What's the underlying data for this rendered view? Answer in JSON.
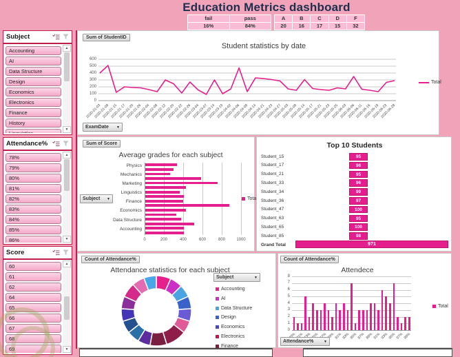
{
  "title": "Education Metrics dashboard",
  "summary_tables": {
    "fail_pass": {
      "headers": [
        "fail",
        "pass"
      ],
      "values": [
        "16%",
        "84%"
      ]
    },
    "grades": {
      "headers": [
        "A",
        "B",
        "C",
        "D",
        "F"
      ],
      "values": [
        "20",
        "16",
        "17",
        "15",
        "32"
      ]
    }
  },
  "slicers": [
    {
      "title": "Subject",
      "items": [
        "Accounting",
        "AI",
        "Data Structure",
        "Design",
        "Economics",
        "Electronics",
        "Finance",
        "History",
        "Linguistics"
      ]
    },
    {
      "title": "Attendance%",
      "items": [
        "78%",
        "79%",
        "80%",
        "81%",
        "82%",
        "83%",
        "84%",
        "85%",
        "86%"
      ]
    },
    {
      "title": "Score",
      "items": [
        "60",
        "61",
        "62",
        "64",
        "65",
        "66",
        "67",
        "68",
        "69"
      ]
    }
  ],
  "accent_color": "#e41e8c",
  "chart_data": [
    {
      "type": "line",
      "title": "Student statistics by date",
      "field_button": "Sum of StudentID",
      "axis_button": "ExamDate",
      "legend": "Total",
      "color": "#e41e8c",
      "ylim": [
        0,
        600
      ],
      "yticks": [
        0,
        100,
        200,
        300,
        400,
        500,
        600
      ],
      "x": [
        "2020-01-03",
        "2020-01-09",
        "2020-01-15",
        "2020-01-17",
        "2020-01-20",
        "2020-01-26",
        "2020-02-04",
        "2020-02-08",
        "2020-02-12",
        "2020-02-20",
        "2020-02-22",
        "2020-02-26",
        "2020-03-04",
        "2020-03-07",
        "2020-03-14",
        "2020-03-19",
        "2020-04-02",
        "2020-04-06",
        "2020-04-09",
        "2020-04-14",
        "2020-04-21",
        "2020-04-23",
        "2020-04-27",
        "2020-05-03",
        "2020-05-09",
        "2020-05-14",
        "2020-05-17",
        "2020-05-21",
        "2020-05-23",
        "2020-05-25",
        "2020-06-03",
        "2020-06-06",
        "2020-06-11",
        "2020-06-16",
        "2020-06-19",
        "2020-06-23",
        "2020-06-28"
      ],
      "series": [
        {
          "name": "Total",
          "values": [
            400,
            510,
            120,
            200,
            190,
            185,
            160,
            130,
            300,
            245,
            110,
            270,
            155,
            90,
            300,
            100,
            170,
            475,
            130,
            330,
            320,
            305,
            285,
            170,
            150,
            305,
            175,
            160,
            150,
            185,
            170,
            350,
            165,
            150,
            130,
            265,
            290
          ]
        }
      ]
    },
    {
      "type": "bar",
      "orientation": "horizontal",
      "title": "Average grades for each subject",
      "field_button": "Sum of Score",
      "axis_button": "Subject",
      "legend": "Total",
      "color": "#e41e8c",
      "xlim": [
        0,
        1000
      ],
      "xticks": [
        0,
        200,
        400,
        600,
        800,
        1000
      ],
      "visible_category_labels": [
        "Physics",
        "Mechanics",
        "Marketing",
        "Linguistics",
        "Finance",
        "Economics",
        "Data Structure",
        "Accounting"
      ],
      "values": [
        330,
        290,
        255,
        580,
        750,
        420,
        360,
        400,
        390,
        870,
        420,
        320,
        370,
        505,
        400,
        400
      ]
    },
    {
      "type": "bar",
      "orientation": "horizontal",
      "title": "Top 10 Students",
      "color": "#e41e8c",
      "categories": [
        "Student_15",
        "Student_17",
        "Student_21",
        "Student_33",
        "Student_34",
        "Student_36",
        "Student_47",
        "Student_63",
        "Student_65",
        "Student_85",
        "Grand Total"
      ],
      "values": [
        95,
        96,
        95,
        96,
        99,
        97,
        100,
        95,
        100,
        98,
        971
      ]
    },
    {
      "type": "pie",
      "donut": true,
      "title": "Attendance statistics for each subject",
      "field_button": "Count of Attendance%",
      "axis_button": "Subject",
      "segments": [
        {
          "value": 7,
          "color": "#e6218b"
        },
        {
          "value": 6,
          "color": "#cc2fc4"
        },
        {
          "value": 6,
          "color": "#4ba3e3"
        },
        {
          "value": 6,
          "color": "#3a62c9"
        },
        {
          "value": 6,
          "color": "#6a5ad6"
        },
        {
          "value": 6,
          "color": "#e05a9a"
        },
        {
          "value": 10,
          "color": "#8f1d4a"
        },
        {
          "value": 8,
          "color": "#7a1f3f"
        },
        {
          "value": 6,
          "color": "#5b2d9e"
        },
        {
          "value": 6,
          "color": "#2a6fa8"
        },
        {
          "value": 6,
          "color": "#24508f"
        },
        {
          "value": 6,
          "color": "#4334b8"
        },
        {
          "value": 6,
          "color": "#8b2d9b"
        },
        {
          "value": 7,
          "color": "#d42a8a"
        },
        {
          "value": 6,
          "color": "#e26bb2"
        },
        {
          "value": 6,
          "color": "#49a7e8"
        }
      ],
      "legend": [
        {
          "label": "Accounting",
          "color": "#e6218b"
        },
        {
          "label": "AI",
          "color": "#cc2fc4"
        },
        {
          "label": "Data Structure",
          "color": "#4ba3e3"
        },
        {
          "label": "Design",
          "color": "#3a62c9"
        },
        {
          "label": "Economics",
          "color": "#4747c3"
        },
        {
          "label": "Electronics",
          "color": "#c3174e"
        },
        {
          "label": "Finance",
          "color": "#7b1f3f"
        }
      ]
    },
    {
      "type": "bar",
      "title": "Attendece",
      "field_button": "Count of Attendance%",
      "axis_button": "Attendance%",
      "legend": "Total",
      "color": "#e41e8c",
      "ylim": [
        0,
        8
      ],
      "yticks": [
        0,
        1,
        2,
        3,
        4,
        5,
        6,
        7,
        8
      ],
      "categories": [
        "100%",
        "70%",
        "71%",
        "72%",
        "73%",
        "74%",
        "75%",
        "76%",
        "77%",
        "78%",
        "79%",
        "80%",
        "81%",
        "82%",
        "83%",
        "84%",
        "85%",
        "86%",
        "87%",
        "88%",
        "89%",
        "90%",
        "91%",
        "92%",
        "93%",
        "94%",
        "95%",
        "96%",
        "97%",
        "98%",
        "99%"
      ],
      "values": [
        2,
        1,
        1,
        5,
        2,
        4,
        3,
        3,
        4,
        3,
        2,
        4,
        3,
        4,
        3,
        7,
        1,
        3,
        3,
        3,
        4,
        4,
        3,
        6,
        5,
        4,
        7,
        2,
        1,
        2,
        2
      ]
    }
  ]
}
